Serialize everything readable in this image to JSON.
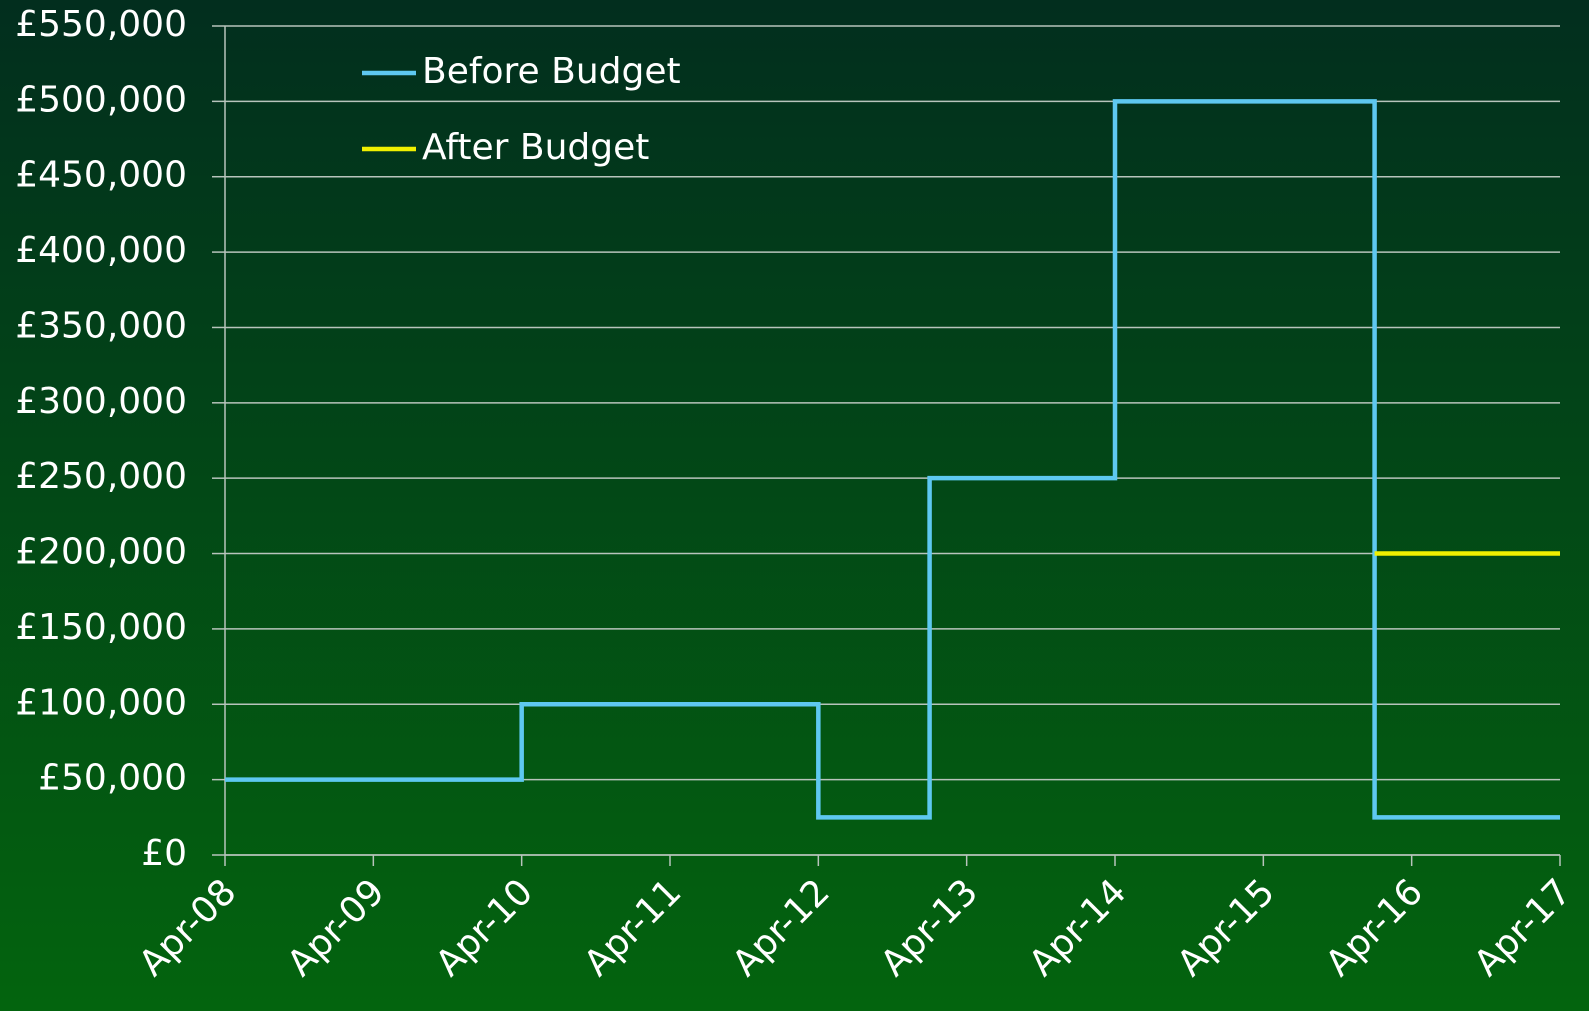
{
  "chart_data": {
    "type": "line",
    "series": [
      {
        "name": "Before Budget",
        "color": "#5ec8f0",
        "x": [
          2008.25,
          2010.25,
          2010.25,
          2012.25,
          2012.25,
          2013,
          2013,
          2014.25,
          2014.25,
          2016,
          2016,
          2017.25
        ],
        "values": [
          50000,
          50000,
          100000,
          100000,
          25000,
          25000,
          250000,
          250000,
          500000,
          500000,
          25000,
          25000
        ]
      },
      {
        "name": "After Budget",
        "color": "#f0f000",
        "x": [
          2016,
          2017.25
        ],
        "values": [
          200000,
          200000
        ]
      }
    ],
    "xlim": [
      2008.25,
      2017.25
    ],
    "xticks": [
      {
        "value": 2008.25,
        "label": "Apr-08"
      },
      {
        "value": 2009.25,
        "label": "Apr-09"
      },
      {
        "value": 2010.25,
        "label": "Apr-10"
      },
      {
        "value": 2011.25,
        "label": "Apr-11"
      },
      {
        "value": 2012.25,
        "label": "Apr-12"
      },
      {
        "value": 2013.25,
        "label": "Apr-13"
      },
      {
        "value": 2014.25,
        "label": "Apr-14"
      },
      {
        "value": 2015.25,
        "label": "Apr-15"
      },
      {
        "value": 2016.25,
        "label": "Apr-16"
      },
      {
        "value": 2017.25,
        "label": "Apr-17"
      }
    ],
    "ylim": [
      0,
      550000
    ],
    "yticks": [
      {
        "value": 0,
        "label": "£0"
      },
      {
        "value": 50000,
        "label": "£50,000"
      },
      {
        "value": 100000,
        "label": "£100,000"
      },
      {
        "value": 150000,
        "label": "£150,000"
      },
      {
        "value": 200000,
        "label": "£200,000"
      },
      {
        "value": 250000,
        "label": "£250,000"
      },
      {
        "value": 300000,
        "label": "£300,000"
      },
      {
        "value": 350000,
        "label": "£350,000"
      },
      {
        "value": 400000,
        "label": "£400,000"
      },
      {
        "value": 450000,
        "label": "£450,000"
      },
      {
        "value": 500000,
        "label": "£500,000"
      },
      {
        "value": 550000,
        "label": "£550,000"
      }
    ],
    "grid": true,
    "legend": "upper left"
  }
}
